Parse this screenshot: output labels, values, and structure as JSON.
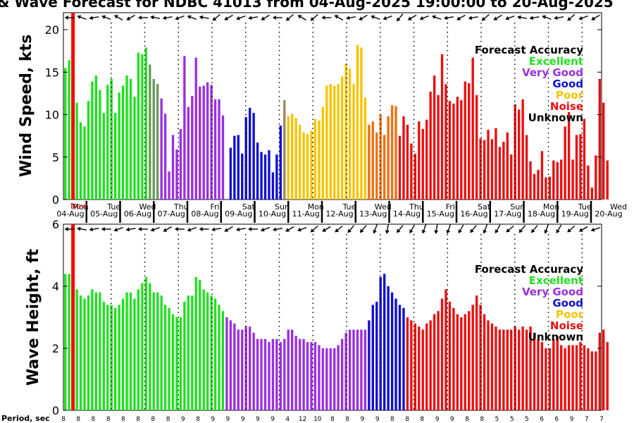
{
  "title": "& Wave Forecast for NDBC 41013 from 04-Aug-2025 19:00:00 to 20-Aug-2025",
  "colors": {
    "excellent": "#22e022",
    "excellent_dim": "#6a9a5a",
    "verygood": "#9a30e0",
    "good": "#1010d0",
    "poor": "#f5c400",
    "poor_dim": "#a08860",
    "orange": "#f07010",
    "noise": "#e81010",
    "unknown": "#000000",
    "now": "#ff0000"
  },
  "legend": {
    "title": "Forecast Accuracy",
    "items": [
      {
        "label": "Excellent",
        "color": "#22e022"
      },
      {
        "label": "Very Good",
        "color": "#9a30e0"
      },
      {
        "label": "Good",
        "color": "#1010d0"
      },
      {
        "label": "Poor",
        "color": "#f5c400"
      },
      {
        "label": "Noise",
        "color": "#e81010"
      },
      {
        "label": "Unknown",
        "color": "#000000"
      }
    ]
  },
  "now_marker": "Now",
  "period_label": "Period, sec",
  "chart_data": [
    {
      "type": "bar",
      "ylabel": "Wind Speed, kts",
      "ylim": [
        0,
        22
      ],
      "yticks": [
        0,
        5,
        10,
        15,
        20
      ],
      "n_bars": 140,
      "values": [
        15.5,
        16.4,
        21.0,
        11.4,
        9.1,
        8.6,
        11.6,
        13.9,
        14.6,
        12.9,
        10.2,
        13.5,
        14.2,
        10.2,
        12.6,
        13.4,
        14.6,
        14.2,
        12.1,
        17.3,
        17.1,
        17.9,
        15.9,
        14.2,
        13.6,
        11.9,
        10.1,
        3.3,
        7.6,
        5.9,
        8.3,
        16.9,
        10.9,
        12.2,
        16.7,
        13.3,
        13.4,
        13.8,
        13.5,
        11.8,
        11.8,
        9.9,
        0.0,
        6.1,
        7.5,
        7.6,
        5.4,
        9.7,
        10.8,
        10.2,
        6.7,
        5.6,
        5.3,
        5.8,
        3.2,
        5.3,
        8.7,
        11.7,
        9.8,
        10.1,
        9.6,
        8.8,
        7.9,
        7.7,
        8.1,
        9.5,
        9.3,
        10.9,
        13.4,
        13.6,
        13.4,
        13.6,
        14.5,
        16.0,
        15.4,
        13.6,
        18.2,
        17.9,
        12.0,
        8.8,
        9.2,
        7.9,
        10.0,
        7.6,
        9.8,
        11.1,
        11.0,
        7.5,
        9.8,
        8.8,
        6.6,
        5.4,
        9.2,
        8.3,
        9.4,
        12.7,
        14.6,
        12.3,
        17.1,
        13.6,
        11.6,
        11.3,
        12.1,
        11.7,
        13.9,
        13.7,
        16.7,
        12.3,
        7.2,
        7.0,
        8.2,
        7.1,
        8.4,
        6.2,
        6.8,
        7.9,
        5.3,
        11.2,
        10.6,
        11.8,
        7.6,
        4.5,
        3.0,
        3.5,
        5.7,
        2.6,
        2.7,
        4.6,
        4.4,
        4.7,
        8.6,
        10.3,
        4.7,
        7.6,
        7.7,
        9.5,
        4.0,
        1.4,
        5.2,
        14.2,
        11.4,
        4.6
      ],
      "colors": [
        "X",
        "X",
        "N",
        "X",
        "X",
        "X",
        "X",
        "X",
        "X",
        "X",
        "X",
        "X",
        "X",
        "X",
        "X",
        "X",
        "X",
        "X",
        "X",
        "X",
        "X",
        "X",
        "D",
        "D",
        "D",
        "V",
        "V",
        "V",
        "V",
        "V",
        "V",
        "V",
        "V",
        "V",
        "V",
        "V",
        "V",
        "V",
        "V",
        "V",
        "V",
        "V",
        "G",
        "G",
        "G",
        "G",
        "G",
        "G",
        "G",
        "G",
        "G",
        "G",
        "G",
        "G",
        "G",
        "G",
        "G",
        "P2",
        "P",
        "P",
        "P",
        "P",
        "P",
        "P",
        "P",
        "P",
        "P",
        "P",
        "P",
        "P",
        "P",
        "P",
        "P",
        "P",
        "P",
        "P",
        "P",
        "P",
        "P",
        "O",
        "O",
        "O",
        "O",
        "O",
        "O",
        "O",
        "O",
        "N",
        "N",
        "N",
        "N",
        "N",
        "N",
        "N",
        "N",
        "N",
        "N",
        "N",
        "N",
        "N",
        "N",
        "N",
        "N",
        "N",
        "N",
        "N",
        "N",
        "N",
        "N",
        "N",
        "N",
        "N",
        "N",
        "N",
        "N",
        "N",
        "N",
        "N",
        "N",
        "N",
        "N",
        "N",
        "N",
        "N",
        "N",
        "N",
        "N",
        "N",
        "N",
        "N",
        "N",
        "N",
        "N",
        "N",
        "N",
        "N",
        "N",
        "N",
        "N",
        "N",
        "N",
        "N"
      ],
      "day_labels": [
        {
          "dow": "Mon",
          "date": "04-Aug"
        },
        {
          "dow": "Tue",
          "date": "05-Aug"
        },
        {
          "dow": "Wed",
          "date": "06-Aug"
        },
        {
          "dow": "Thu",
          "date": "07-Aug"
        },
        {
          "dow": "Fri",
          "date": "08-Aug"
        },
        {
          "dow": "Sat",
          "date": "09-Aug"
        },
        {
          "dow": "Sun",
          "date": "10-Aug"
        },
        {
          "dow": "Mon",
          "date": "11-Aug"
        },
        {
          "dow": "Tue",
          "date": "12-Aug"
        },
        {
          "dow": "Wed",
          "date": "13-Aug"
        },
        {
          "dow": "Thu",
          "date": "14-Aug"
        },
        {
          "dow": "Fri",
          "date": "15-Aug"
        },
        {
          "dow": "Sat",
          "date": "16-Aug"
        },
        {
          "dow": "Sun",
          "date": "17-Aug"
        },
        {
          "dow": "Mon",
          "date": "18-Aug"
        },
        {
          "dow": "Tue",
          "date": "19-Aug"
        },
        {
          "dow": "Wed",
          "date": "20-Aug"
        }
      ]
    },
    {
      "type": "bar",
      "ylabel": "Wave Height, ft",
      "ylim": [
        0,
        6
      ],
      "yticks": [
        0,
        2,
        4,
        6
      ],
      "n_bars": 140,
      "values": [
        4.4,
        4.4,
        6.0,
        3.9,
        3.7,
        3.6,
        3.7,
        3.9,
        3.8,
        3.8,
        3.5,
        3.4,
        3.4,
        3.3,
        3.4,
        3.6,
        3.8,
        3.8,
        3.6,
        3.9,
        4.1,
        4.3,
        4.1,
        3.8,
        3.8,
        3.7,
        3.4,
        3.3,
        3.1,
        3.0,
        3.0,
        3.5,
        3.7,
        3.7,
        4.3,
        4.2,
        3.9,
        3.8,
        3.7,
        3.6,
        3.4,
        3.2,
        3.0,
        2.9,
        2.8,
        2.6,
        2.6,
        2.7,
        2.7,
        2.5,
        2.3,
        2.3,
        2.3,
        2.2,
        2.3,
        2.3,
        2.2,
        2.3,
        2.6,
        2.6,
        2.4,
        2.3,
        2.3,
        2.2,
        2.2,
        2.2,
        2.1,
        2.0,
        2.0,
        2.0,
        2.0,
        2.1,
        2.3,
        2.5,
        2.6,
        2.6,
        2.6,
        2.6,
        2.6,
        2.9,
        3.4,
        3.5,
        4.3,
        4.4,
        4.0,
        3.8,
        3.6,
        3.4,
        3.3,
        3.0,
        2.9,
        2.8,
        2.7,
        2.6,
        2.8,
        2.9,
        3.1,
        3.2,
        3.6,
        3.9,
        3.5,
        3.3,
        3.1,
        3.0,
        3.1,
        3.2,
        3.4,
        3.7,
        3.4,
        3.1,
        2.9,
        2.8,
        2.7,
        2.6,
        2.6,
        2.6,
        2.6,
        2.7,
        2.6,
        2.7,
        2.6,
        2.7,
        2.5,
        2.3,
        2.2,
        2.0,
        2.0,
        2.3,
        2.4,
        2.1,
        2.0,
        2.1,
        2.1,
        2.1,
        2.2,
        2.1,
        2.0,
        1.9,
        1.9,
        2.5,
        2.6,
        2.2
      ],
      "colors": [
        "X",
        "X",
        "N",
        "X",
        "X",
        "X",
        "X",
        "X",
        "X",
        "X",
        "X",
        "X",
        "X",
        "X",
        "X",
        "X",
        "X",
        "X",
        "X",
        "X",
        "X",
        "X",
        "X",
        "X",
        "X",
        "X",
        "X",
        "X",
        "X",
        "X",
        "X",
        "X",
        "X",
        "X",
        "X",
        "X",
        "X",
        "X",
        "X",
        "X",
        "X",
        "X",
        "V",
        "V",
        "V",
        "V",
        "V",
        "V",
        "V",
        "V",
        "V",
        "V",
        "V",
        "V",
        "V",
        "V",
        "V",
        "V",
        "V",
        "V",
        "V",
        "V",
        "V",
        "V",
        "V",
        "V",
        "V",
        "V",
        "V",
        "V",
        "V",
        "V",
        "V",
        "V",
        "V",
        "V",
        "V",
        "V",
        "V",
        "G",
        "G",
        "G",
        "G",
        "G",
        "G",
        "G",
        "G",
        "G",
        "G",
        "N",
        "N",
        "N",
        "N",
        "N",
        "N",
        "N",
        "N",
        "N",
        "N",
        "N",
        "N",
        "N",
        "N",
        "N",
        "N",
        "N",
        "N",
        "N",
        "N",
        "N",
        "N",
        "N",
        "N",
        "N",
        "N",
        "N",
        "N",
        "N",
        "N",
        "N",
        "N",
        "N",
        "N",
        "N",
        "N",
        "N",
        "N",
        "N",
        "N",
        "N",
        "N",
        "N",
        "N",
        "N",
        "N",
        "N",
        "N",
        "N",
        "N",
        "N"
      ]
    }
  ],
  "periods": [
    "8",
    "8",
    "8",
    "8",
    "8",
    "8",
    "8",
    "8",
    "9",
    "8",
    "9",
    "9",
    "9",
    "9",
    "9",
    "4",
    "12",
    "10",
    "8",
    "8",
    "9",
    "9",
    "8",
    "8",
    "8",
    "9",
    "9",
    "8",
    "8",
    "5",
    "5",
    "5",
    "6",
    "6",
    "9",
    "7",
    "7"
  ],
  "arrows_top": [
    180,
    200,
    170,
    200,
    210,
    150,
    180,
    190,
    170,
    160,
    200,
    190,
    140,
    150,
    160,
    170,
    150,
    180,
    140,
    210,
    140,
    180,
    210,
    170,
    150,
    200,
    160,
    130,
    150,
    160,
    200,
    170,
    150,
    170,
    140,
    150,
    160,
    190,
    170,
    200,
    170,
    140,
    160,
    150
  ],
  "arrows_bottom": [
    180,
    190,
    170,
    180,
    160,
    170,
    180,
    160,
    150,
    180,
    160,
    180,
    170,
    150,
    170,
    180,
    160,
    170,
    150,
    160,
    140,
    150,
    140,
    130,
    130,
    110,
    100,
    130,
    120,
    110,
    100,
    110,
    120,
    130,
    110,
    120,
    140,
    130,
    130,
    110,
    120,
    140,
    150,
    160
  ]
}
